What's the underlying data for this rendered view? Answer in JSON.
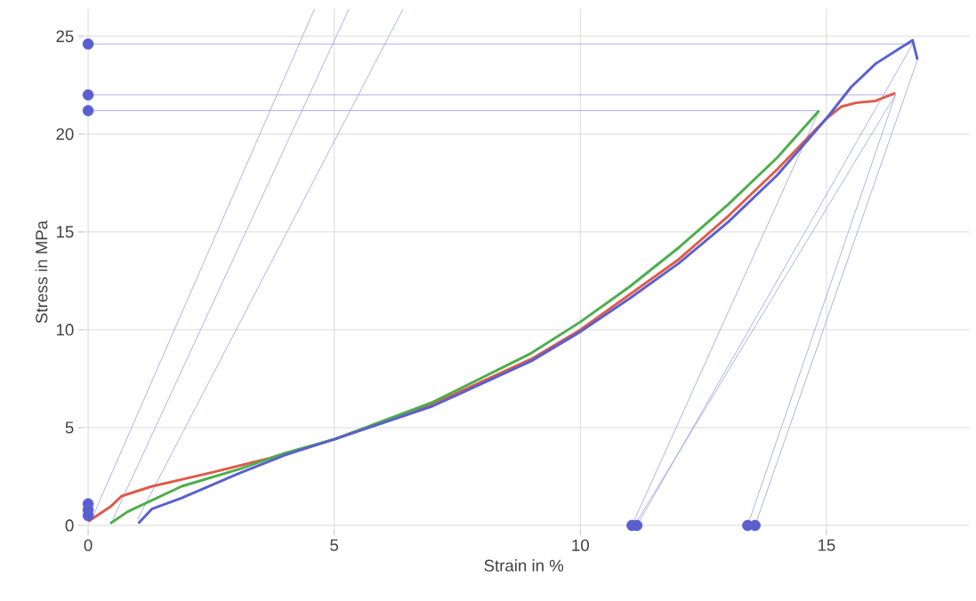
{
  "chart_data": {
    "type": "line",
    "xlabel": "Strain in %",
    "ylabel": "Stress in MPa",
    "xlim": [
      -0.2,
      17.9
    ],
    "ylim": [
      -0.5,
      26.4
    ],
    "xticks": [
      0,
      5,
      10,
      15
    ],
    "yticks": [
      0,
      5,
      10,
      15,
      20,
      25
    ],
    "grid": true,
    "series": [
      {
        "color": "#9a9ee0",
        "x": [
          0,
          16.75
        ],
        "values": [
          24.6,
          24.6
        ]
      },
      {
        "color": "#9a9ee0",
        "x": [
          0,
          16.4
        ],
        "values": [
          22.0,
          22.0
        ]
      },
      {
        "color": "#9a9ee0",
        "x": [
          0,
          14.85
        ],
        "values": [
          21.2,
          21.2
        ]
      },
      {
        "color": "#9a9ee0",
        "x": [
          0.05,
          4.6
        ],
        "values": [
          0.2,
          26.4
        ]
      },
      {
        "color": "#9a9ee0",
        "x": [
          0.5,
          5.3
        ],
        "values": [
          0.3,
          26.4
        ]
      },
      {
        "color": "#9a9ee0",
        "x": [
          1.0,
          6.4
        ],
        "values": [
          0.3,
          26.4
        ]
      },
      {
        "color": "#9a9ee0",
        "x": [
          11.05,
          14.85
        ],
        "values": [
          0,
          21.2
        ]
      },
      {
        "color": "#9a9ee0",
        "x": [
          11.1,
          16.4
        ],
        "values": [
          0,
          22.0
        ]
      },
      {
        "color": "#9a9ee0",
        "x": [
          11.15,
          16.75
        ],
        "values": [
          0,
          24.6
        ]
      },
      {
        "color": "#9a9ee0",
        "x": [
          13.4,
          16.4
        ],
        "values": [
          0,
          22.0
        ]
      },
      {
        "color": "#9a9ee0",
        "x": [
          13.55,
          16.85
        ],
        "values": [
          0,
          23.8
        ]
      },
      {
        "color": "#e05a4a",
        "x": [
          0,
          0.45,
          0.68,
          1.3,
          2.5,
          3.7,
          5,
          7,
          9,
          10,
          12,
          13,
          14,
          15,
          15.3,
          15.6,
          16,
          16.4
        ],
        "values": [
          0.2,
          0.95,
          1.5,
          2.0,
          2.7,
          3.45,
          4.4,
          6.2,
          8.5,
          10.0,
          13.6,
          15.8,
          18.2,
          20.8,
          21.4,
          21.6,
          21.7,
          22.1
        ]
      },
      {
        "color": "#4cae4c",
        "x": [
          0.45,
          0.8,
          1.9,
          3.1,
          4,
          5,
          7,
          9,
          10,
          11,
          12,
          13,
          14,
          14.85
        ],
        "values": [
          0.1,
          0.7,
          2.0,
          2.9,
          3.7,
          4.4,
          6.3,
          8.8,
          10.4,
          12.2,
          14.2,
          16.4,
          18.8,
          21.2
        ]
      },
      {
        "color": "#5a5fd0",
        "x": [
          1.02,
          1.3,
          1.9,
          3.1,
          4,
          5,
          7,
          9,
          10,
          11,
          12,
          13,
          14,
          15,
          15.5,
          16,
          16.5,
          16.75,
          16.85
        ],
        "values": [
          0.1,
          0.85,
          1.4,
          2.7,
          3.6,
          4.4,
          6.1,
          8.4,
          9.9,
          11.6,
          13.4,
          15.5,
          17.9,
          20.8,
          22.4,
          23.6,
          24.4,
          24.8,
          23.8
        ]
      },
      {
        "type": "scatter",
        "marker": "circle",
        "color": "#5a5fd0",
        "x": [
          0,
          0,
          0,
          0,
          0,
          0,
          11.05,
          11.15,
          13.4,
          13.55
        ],
        "values": [
          24.6,
          22.0,
          21.2,
          1.1,
          0.8,
          0.5,
          0,
          0,
          0,
          0
        ]
      }
    ]
  }
}
